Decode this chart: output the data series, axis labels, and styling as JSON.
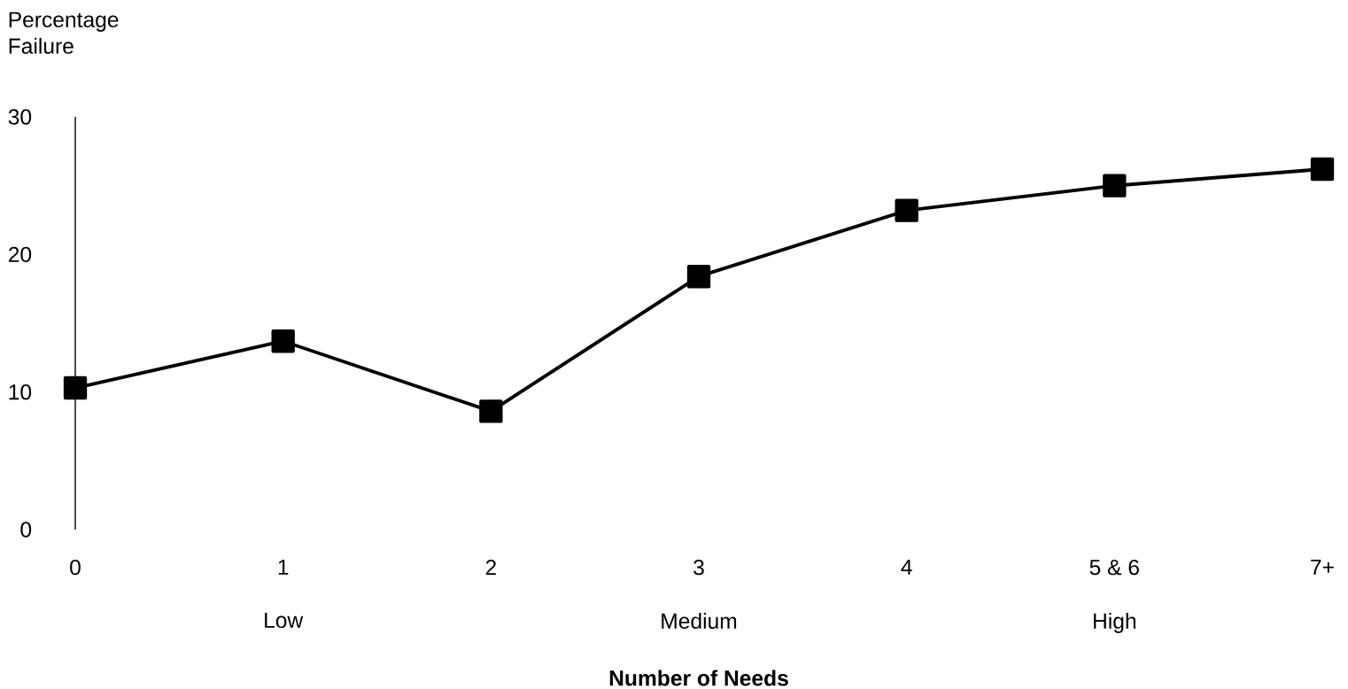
{
  "chart_data": {
    "type": "line",
    "ylabel": "Percentage Failure",
    "xlabel": "Number of Needs",
    "categories": [
      "0",
      "1",
      "2",
      "3",
      "4",
      "5 & 6",
      "7+"
    ],
    "values": [
      10.3,
      13.7,
      8.6,
      18.4,
      23.2,
      25.0,
      26.2
    ],
    "color": "#000000",
    "marker": "square",
    "line_style": "solid",
    "ylim": [
      0,
      30
    ],
    "yticks": [
      0,
      10,
      20,
      30
    ],
    "annotations": [
      "Low",
      "Medium",
      "High"
    ]
  }
}
